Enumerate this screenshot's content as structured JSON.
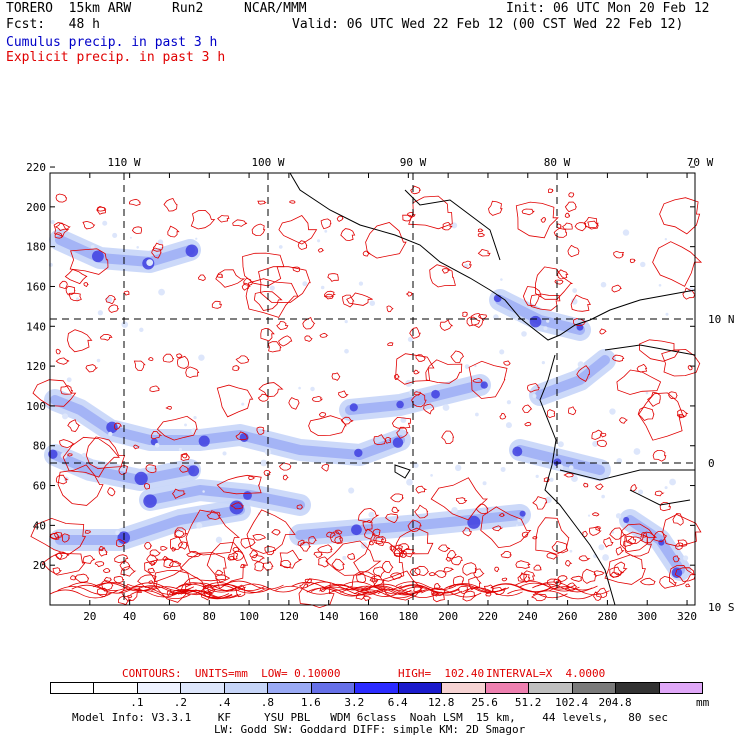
{
  "header": {
    "model": "TORERO  15km ARW",
    "run": "Run2",
    "org": "NCAR/MMM",
    "init": "Init: 06 UTC Mon 20 Feb 12",
    "fcst": "Fcst:   48 h",
    "valid": "Valid: 06 UTC Wed 22 Feb 12 (00 CST Wed 22 Feb 12)",
    "field1": "Cumulus precip. in past 3 h",
    "field2": "Explicit precip. in past 3 h"
  },
  "map": {
    "lon_labels": [
      "110 W",
      "100 W",
      "90 W",
      "80 W",
      "70 W"
    ],
    "lat_labels": [
      "10 N",
      "0",
      "10 S"
    ],
    "x_ticks": [
      "20",
      "40",
      "60",
      "80",
      "100",
      "120",
      "140",
      "160",
      "180",
      "200",
      "220",
      "240",
      "260",
      "280",
      "300",
      "320"
    ],
    "y_ticks": [
      "20",
      "40",
      "60",
      "80",
      "100",
      "120",
      "140",
      "160",
      "180",
      "200",
      "220"
    ],
    "contour_color": "#e00000",
    "coast_color": "#000000"
  },
  "contour_note": {
    "units": "CONTOURS:  UNITS=mm  LOW= 0.10000",
    "high": "HIGH=  102.40",
    "interval": "INTERVAL=X  4.0000"
  },
  "colorbar": {
    "colors": [
      "#ffffff",
      "#ffffff",
      "#eef2ff",
      "#dde6fb",
      "#c6d5f8",
      "#9aaaf5",
      "#6670e8",
      "#2b2bff",
      "#1a1acc",
      "#f6d3d3",
      "#ee80b0",
      "#bfbfbf",
      "#7a7a7a",
      "#333333",
      "#e0a8f8"
    ],
    "labels": [
      ".1",
      ".2",
      ".4",
      ".8",
      "1.6",
      "3.2",
      "6.4",
      "12.8",
      "25.6",
      "51.2",
      "102.4",
      "204.8"
    ],
    "unit": "mm"
  },
  "footer": {
    "line1": "Model Info: V3.3.1    KF     YSU PBL   WDM 6class  Noah LSM  15 km,    44 levels,   80 sec",
    "line2": "LW: Godd SW: Goddard DIFF: simple KM: 2D Smagor"
  }
}
